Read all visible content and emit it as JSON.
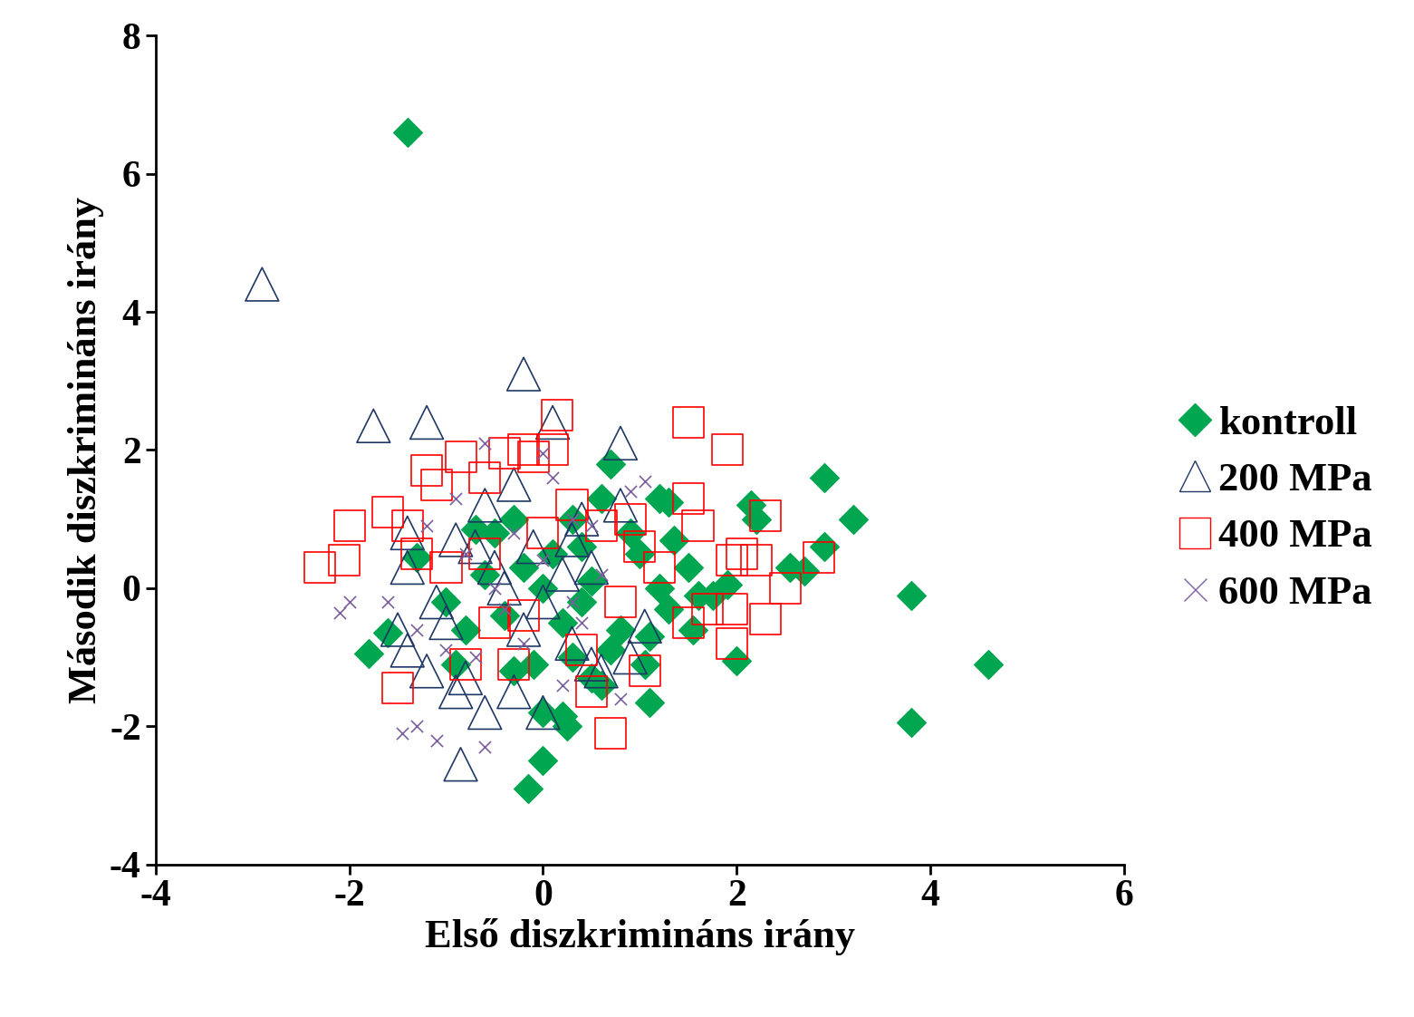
{
  "chart_data": {
    "type": "scatter",
    "x_label": "Első diszkrimináns irány",
    "y_label": "Második diszkrimináns irány",
    "xlim": [
      -4,
      6
    ],
    "xticks": [
      -4,
      -2,
      0,
      2,
      4,
      6
    ],
    "ylim": [
      -4,
      8
    ],
    "yticks": [
      -4,
      -2,
      0,
      2,
      4,
      6,
      8
    ],
    "grid": false,
    "legend": "right",
    "series": [
      {
        "name": "kontroll",
        "color": "#00a650",
        "marker": "diamond",
        "x": [
          -1.4,
          3.8,
          4.6,
          3.8,
          2.9,
          3.2,
          2.9,
          2.55,
          2.7,
          2.15,
          2.2,
          2.0,
          1.9,
          1.75,
          1.5,
          1.55,
          1.6,
          1.3,
          1.2,
          1.35,
          1.1,
          1.05,
          1.1,
          0.7,
          0.6,
          0.3,
          0.5,
          0.4,
          0.2,
          0.25,
          0.0,
          0.0,
          -0.15,
          -0.1,
          -0.3,
          0.6,
          0.5,
          0.8,
          0.9,
          1.0,
          1.3,
          -1.8,
          -1.6,
          -1.3,
          -1.0,
          -0.9,
          -0.7,
          -0.5,
          -0.3,
          -0.6,
          -0.4,
          0.1,
          0.2,
          0.3,
          -0.2,
          0.7,
          1.2,
          -0.8,
          0.0,
          0.4
        ],
        "y": [
          6.6,
          -0.1,
          -1.1,
          -1.95,
          1.6,
          1.0,
          0.6,
          0.3,
          0.25,
          1.2,
          1.0,
          -1.05,
          0.05,
          -0.1,
          0.3,
          -0.6,
          -0.1,
          1.25,
          1.3,
          0.7,
          -1.65,
          -1.1,
          -0.7,
          1.8,
          1.3,
          1.0,
          0.1,
          -0.2,
          -1.85,
          -2.0,
          -1.8,
          -2.5,
          -2.9,
          -1.1,
          -1.2,
          -1.4,
          -1.3,
          -0.6,
          0.8,
          0.5,
          -0.3,
          -0.95,
          -0.65,
          0.45,
          -0.2,
          -1.1,
          0.85,
          0.8,
          1.0,
          0.2,
          -0.4,
          0.5,
          -0.5,
          -1.0,
          0.3,
          -0.9,
          0.0,
          -0.6,
          0.0,
          0.6
        ]
      },
      {
        "name": "200 MPa",
        "color": "#1f3864",
        "marker": "triangle",
        "x": [
          -2.9,
          -0.2,
          -1.75,
          -1.2,
          0.1,
          0.8,
          -0.3,
          -1.4,
          -1.4,
          -1.5,
          -1.4,
          -1.2,
          -1.0,
          -0.85,
          -0.6,
          -0.8,
          -0.9,
          -0.3,
          0.0,
          0.3,
          0.6,
          0.5,
          1.05,
          0.5,
          0.8,
          0.3,
          -0.1,
          -0.5,
          -0.7,
          -0.9,
          0.0,
          -0.2,
          0.9,
          -1.1,
          -0.6,
          0.4,
          -0.4,
          0.2
        ],
        "y": [
          4.4,
          3.1,
          2.35,
          2.4,
          2.4,
          2.1,
          1.5,
          0.8,
          0.3,
          -0.6,
          -0.9,
          -1.2,
          -0.5,
          -2.55,
          -1.8,
          -1.3,
          -1.5,
          -1.5,
          -1.8,
          -0.8,
          -1.2,
          -1.1,
          -0.55,
          0.3,
          1.2,
          0.7,
          0.6,
          0.3,
          0.6,
          0.7,
          -0.2,
          -0.6,
          -1.0,
          -0.2,
          1.2,
          1.0,
          0.0,
          0.2
        ]
      },
      {
        "name": "400 MPa",
        "color": "#ff0000",
        "marker": "square",
        "x": [
          -2.3,
          -2.0,
          -2.05,
          -1.6,
          -1.5,
          -1.2,
          -1.1,
          -0.85,
          -0.6,
          -0.2,
          -0.1,
          0.1,
          0.15,
          -0.4,
          0.6,
          1.5,
          1.9,
          1.5,
          1.6,
          2.3,
          2.05,
          1.95,
          2.2,
          2.85,
          2.5,
          2.3,
          1.95,
          1.95,
          1.5,
          1.05,
          0.5,
          0.4,
          0.7,
          -0.2,
          -1.4,
          -1.3,
          -1.0,
          -0.5,
          -0.8,
          0.0,
          0.3,
          0.9,
          1.2,
          0.8,
          1.7,
          -0.3,
          1.0,
          -0.6
        ],
        "y": [
          0.3,
          0.9,
          0.4,
          1.1,
          -1.45,
          1.7,
          1.5,
          1.9,
          1.6,
          2.0,
          1.9,
          2.0,
          2.5,
          1.95,
          0.9,
          2.4,
          2.0,
          1.3,
          0.9,
          1.05,
          0.5,
          0.4,
          0.4,
          0.45,
          0.0,
          -0.45,
          -0.3,
          -0.8,
          -0.5,
          -1.2,
          -1.5,
          -0.9,
          -2.1,
          -0.4,
          0.9,
          0.5,
          0.3,
          -0.5,
          -1.1,
          0.8,
          1.2,
          1.0,
          0.3,
          -0.2,
          -0.3,
          -1.1,
          0.6,
          0.5
        ]
      },
      {
        "name": "600 MPa",
        "color": "#7b5fa0",
        "marker": "x",
        "x": [
          -2.1,
          -2.0,
          -1.45,
          -1.3,
          -1.1,
          -0.6,
          -0.6,
          0.0,
          0.1,
          1.05,
          0.9,
          -1.2,
          -0.9,
          -1.6,
          -1.0,
          -0.5,
          -0.3,
          0.3,
          0.5,
          0.8,
          0.2,
          -0.2,
          0.0,
          -0.7,
          -1.3,
          0.6,
          -0.4,
          0.4,
          -0.8,
          0.3
        ],
        "y": [
          -0.35,
          -0.2,
          -2.1,
          -2.0,
          -2.2,
          -2.3,
          2.1,
          1.95,
          1.6,
          1.55,
          1.4,
          0.9,
          1.3,
          -0.2,
          -0.9,
          0.0,
          0.8,
          1.0,
          0.9,
          -1.6,
          -1.4,
          -0.8,
          0.4,
          -1.0,
          -0.6,
          0.2,
          -0.3,
          -0.5,
          0.5,
          -0.2
        ]
      }
    ]
  }
}
